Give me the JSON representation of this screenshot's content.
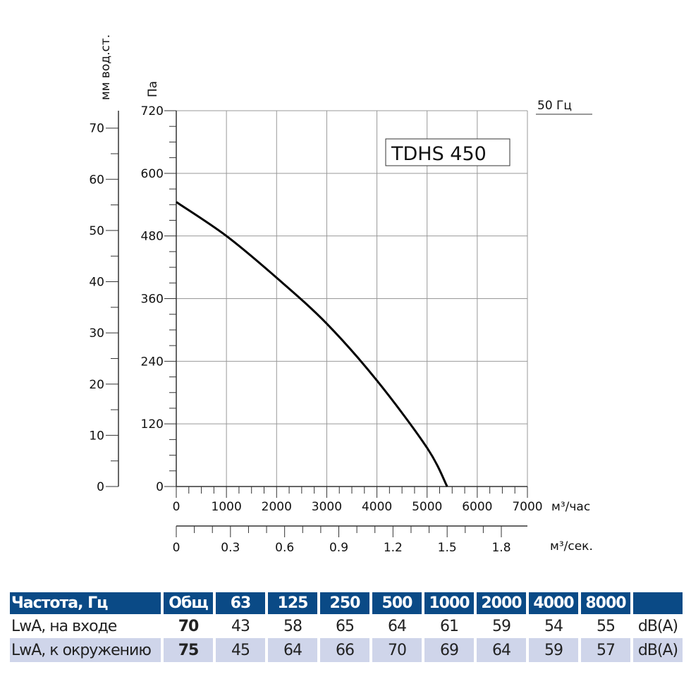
{
  "chart_data": {
    "type": "line",
    "title": "TDHS 450",
    "legend": "50 Гц",
    "ylabel": "Па",
    "ylabel2": "мм вод.ст.",
    "xlabel": "м³/час",
    "xlabel2": "м³/сек.",
    "xlim": [
      0,
      7000
    ],
    "ylim": [
      0,
      720
    ],
    "y2lim": [
      0,
      73.4
    ],
    "grid": true,
    "x_ticks": [
      "0",
      "1000",
      "2000",
      "3000",
      "4000",
      "5000",
      "6000",
      "7000"
    ],
    "x2_ticks": [
      "0",
      "0.3",
      "0.6",
      "0.9",
      "1.2",
      "1.5",
      "1.8"
    ],
    "y_ticks": [
      "0",
      "120",
      "240",
      "360",
      "480",
      "600",
      "720"
    ],
    "y2_ticks": [
      "0",
      "10",
      "20",
      "30",
      "40",
      "50",
      "60",
      "70"
    ],
    "series": [
      {
        "x": [
          0,
          1000,
          2000,
          3000,
          4000,
          5000,
          5400
        ],
        "y": [
          545,
          480,
          400,
          312,
          203,
          74,
          0
        ]
      }
    ]
  },
  "table": {
    "header": [
      "Частота, Гц",
      "Общ",
      "63",
      "125",
      "250",
      "500",
      "1000",
      "2000",
      "4000",
      "8000",
      ""
    ],
    "rows": [
      [
        "LwA, на входе",
        "70",
        "43",
        "58",
        "65",
        "64",
        "61",
        "59",
        "54",
        "55",
        "dB(A)"
      ],
      [
        "LwA, к окружению",
        "75",
        "45",
        "64",
        "66",
        "70",
        "69",
        "64",
        "59",
        "57",
        "dB(A)"
      ]
    ]
  }
}
